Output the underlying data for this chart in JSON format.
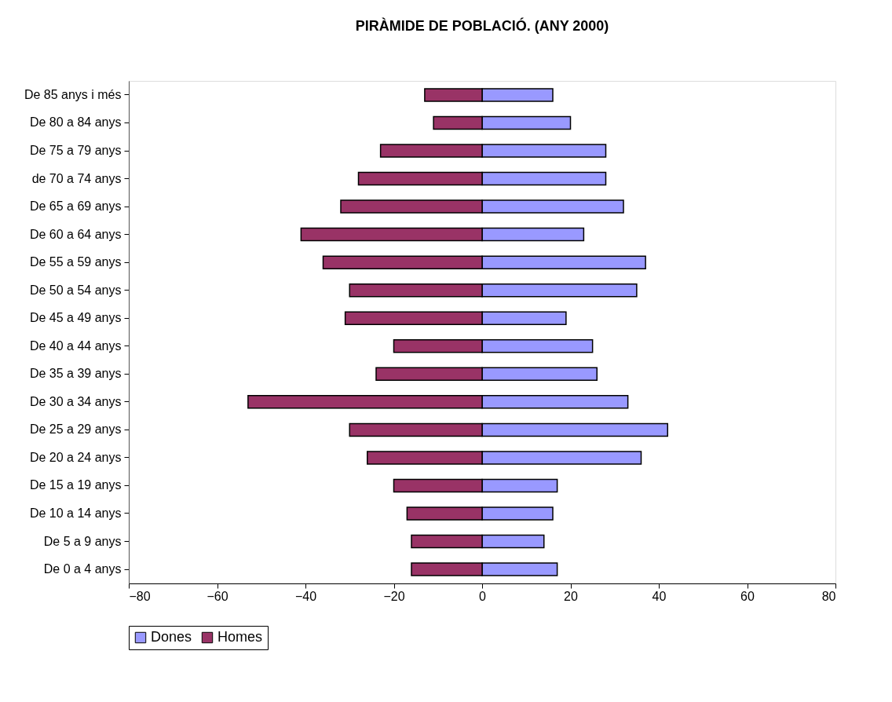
{
  "chart_data": {
    "type": "bar",
    "orientation": "horizontal",
    "title": "PIRÀMIDE DE POBLACIÓ. (ANY 2000)",
    "categories": [
      "De 85 anys i més",
      "De 80 a 84 anys",
      "De 75 a 79 anys",
      "de 70 a 74 anys",
      "De 65 a 69 anys",
      "De 60 a 64 anys",
      "De 55 a 59 anys",
      "De 50 a 54 anys",
      "De 45 a 49 anys",
      "De 40 a 44 anys",
      "De 35 a 39 anys",
      "De 30 a 34 anys",
      "De 25 a 29 anys",
      "De 20 a 24 anys",
      "De 15 a 19 anys",
      "De 10 a 14 anys",
      "De 5 a 9 anys",
      "De 0 a 4 anys"
    ],
    "series": [
      {
        "name": "Dones",
        "color": "#9999ff",
        "values": [
          16,
          20,
          28,
          28,
          32,
          23,
          37,
          35,
          19,
          25,
          26,
          33,
          42,
          36,
          17,
          16,
          14,
          17
        ]
      },
      {
        "name": "Homes",
        "color": "#993366",
        "values": [
          -13,
          -11,
          -23,
          -28,
          -32,
          -41,
          -36,
          -30,
          -31,
          -20,
          -24,
          -53,
          -30,
          -26,
          -20,
          -17,
          -16,
          -16
        ]
      }
    ],
    "xlim": [
      -80,
      80
    ],
    "xticks": [
      -80,
      -60,
      -40,
      -20,
      0,
      20,
      40,
      60,
      80
    ],
    "grid": false,
    "legend": "bottom",
    "stacked": true
  }
}
